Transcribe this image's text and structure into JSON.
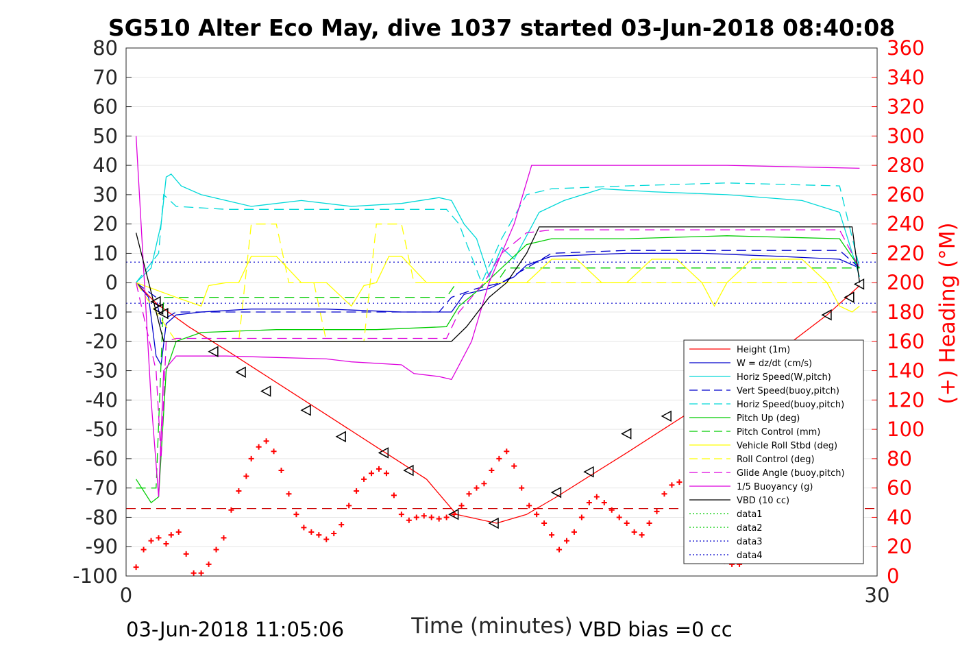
{
  "chart_data": {
    "type": "line",
    "title": "SG510 Alter Eco May, dive 1037 started 03-Jun-2018 08:40:08",
    "xlabel": "Time (minutes)",
    "ylabel_right": "(+) Heading (°M)",
    "footer_left": "03-Jun-2018 11:05:06",
    "footer_right": "VBD bias =0 cc",
    "xlim": [
      0,
      30
    ],
    "ylim": [
      -100,
      80
    ],
    "ylim_right": [
      0,
      360
    ],
    "x_ticks": [
      "0",
      "30"
    ],
    "y_ticks": [
      "80",
      "70",
      "60",
      "50",
      "40",
      "30",
      "20",
      "10",
      "0",
      "-10",
      "-20",
      "-30",
      "-40",
      "-50",
      "-60",
      "-70",
      "-80",
      "-90",
      "-100"
    ],
    "y_ticks_right": [
      "360",
      "340",
      "320",
      "300",
      "280",
      "260",
      "240",
      "220",
      "200",
      "180",
      "160",
      "140",
      "120",
      "100",
      "80",
      "60",
      "40",
      "20",
      "0"
    ],
    "grid": true,
    "legend_position": "bottom-right",
    "series": [
      {
        "name": "Height (1m)",
        "color": "#ff0000",
        "style": "solid",
        "x": [
          0.4,
          1.2,
          2.5,
          4.0,
          6.0,
          8.0,
          10.0,
          12.0,
          13.2,
          14.8,
          16.0,
          17.2,
          18.5,
          20.0,
          22.0,
          24.0,
          26.0,
          28.0,
          29.3
        ],
        "y": [
          0,
          -7,
          -15,
          -23,
          -34,
          -45,
          -56,
          -67,
          -79,
          -82,
          -79,
          -73,
          -66,
          -58,
          -47,
          -36,
          -24,
          -11,
          -1
        ]
      },
      {
        "name": "W = dz/dt (cm/s)",
        "color": "#0000cc",
        "style": "solid",
        "x": [
          0.4,
          0.9,
          1.2,
          1.4,
          1.6,
          2.0,
          3.0,
          5.0,
          8.0,
          11.0,
          13.0,
          13.5,
          14.5,
          15.0,
          15.5,
          16.0,
          17.0,
          20.0,
          23.0,
          26.0,
          28.5,
          29.3
        ],
        "y": [
          0,
          -5,
          -25,
          -28,
          -14,
          -11,
          -10,
          -9,
          -9,
          -10,
          -10,
          -4,
          -2,
          0,
          2,
          6,
          9,
          10,
          10,
          9,
          8,
          5
        ]
      },
      {
        "name": "Horiz Speed(W,pitch)",
        "color": "#00d8d8",
        "style": "solid",
        "x": [
          0.4,
          1.0,
          1.4,
          1.6,
          1.8,
          2.2,
          3.0,
          5.0,
          7.0,
          9.0,
          11.0,
          12.5,
          13.0,
          13.5,
          14.0,
          14.5,
          15.0,
          15.5,
          16.5,
          17.5,
          19.0,
          21.0,
          24.0,
          27.0,
          28.5,
          29.3
        ],
        "y": [
          0,
          5,
          20,
          36,
          37,
          33,
          30,
          26,
          28,
          26,
          27,
          29,
          28,
          20,
          15,
          2,
          12,
          8,
          24,
          28,
          32,
          31,
          30,
          28,
          24,
          2
        ]
      },
      {
        "name": "Vert Speed(buoy,pitch)",
        "color": "#0000cc",
        "style": "dashed",
        "x": [
          0.4,
          1.2,
          1.4,
          1.6,
          2.0,
          4.0,
          8.0,
          12.5,
          13.0,
          14.0,
          15.0,
          16.0,
          17.0,
          20.0,
          24.0,
          28.5,
          29.3
        ],
        "y": [
          0,
          -5,
          -14,
          -12,
          -10,
          -10,
          -10,
          -10,
          -5,
          -2,
          0,
          5,
          10,
          11,
          11,
          11,
          5
        ]
      },
      {
        "name": "Horiz Speed(buoy,pitch)",
        "color": "#00d8d8",
        "style": "dashed",
        "x": [
          0.4,
          1.3,
          1.5,
          2.0,
          4.0,
          8.0,
          12.8,
          13.3,
          14.2,
          15.0,
          16.0,
          17.0,
          20.0,
          24.0,
          28.5,
          29.3
        ],
        "y": [
          0,
          10,
          30,
          26,
          25,
          25,
          25,
          20,
          0,
          15,
          30,
          32,
          33,
          34,
          33,
          5
        ]
      },
      {
        "name": "Pitch Up (deg)",
        "color": "#00cc00",
        "style": "solid",
        "x": [
          0.4,
          1.0,
          1.3,
          1.6,
          2.0,
          3.0,
          6.0,
          10.0,
          12.8,
          13.3,
          14.0,
          15.0,
          16.0,
          17.0,
          20.0,
          24.0,
          28.5,
          29.3
        ],
        "y": [
          -67,
          -75,
          -73,
          -30,
          -20,
          -17,
          -16,
          -16,
          -15,
          -8,
          -3,
          5,
          13,
          15,
          15,
          16,
          15,
          5
        ]
      },
      {
        "name": "Pitch Control (mm)",
        "color": "#00cc00",
        "style": "dashed",
        "x": [
          0.4,
          1.2,
          1.5,
          2.0,
          8.0,
          12.8,
          13.2,
          14.8,
          15.2,
          20.0,
          28.5,
          29.3
        ],
        "y": [
          -70,
          -70,
          -5,
          -5,
          -5,
          -5,
          0,
          0,
          5,
          5,
          5,
          5
        ]
      },
      {
        "name": "Vehicle Roll Stbd (deg)",
        "color": "#ffff00",
        "style": "solid",
        "x": [
          0.4,
          2.0,
          3.0,
          3.3,
          4.0,
          4.5,
          5.0,
          6.0,
          7.0,
          8.0,
          9.0,
          9.5,
          10.0,
          10.5,
          11.0,
          12.0,
          13.0,
          14.0,
          15.5,
          16.0,
          17.0,
          18.0,
          19.0,
          20.0,
          21.0,
          22.0,
          23.0,
          23.5,
          24.0,
          25.0,
          26.0,
          27.0,
          28.0,
          28.5,
          29.0,
          29.3
        ],
        "y": [
          0,
          -5,
          -8,
          -1,
          0,
          0,
          9,
          9,
          0,
          0,
          -8,
          -1,
          0,
          9,
          9,
          0,
          0,
          0,
          0,
          0,
          8,
          8,
          0,
          0,
          8,
          8,
          0,
          -8,
          0,
          8,
          8,
          8,
          0,
          -8,
          -10,
          -8
        ]
      },
      {
        "name": "Roll Control (deg)",
        "color": "#ffff00",
        "style": "dashed",
        "x": [
          0.4,
          2.0,
          3.0,
          4.5,
          5.0,
          6.0,
          6.5,
          7.5,
          8.0,
          9.5,
          10.0,
          11.0,
          11.5,
          13.0,
          28.5
        ],
        "y": [
          0,
          -20,
          -20,
          -20,
          20,
          20,
          0,
          0,
          -20,
          -20,
          20,
          20,
          0,
          0,
          0
        ]
      },
      {
        "name": "Glide Angle (buoy,pitch)",
        "color": "#dd00dd",
        "style": "dashed",
        "x": [
          0.4,
          1.2,
          1.4,
          1.6,
          2.0,
          4.0,
          8.0,
          12.8,
          13.3,
          14.3,
          15.0,
          16.0,
          17.0,
          20.0,
          24.0,
          28.5,
          29.3
        ],
        "y": [
          0,
          -30,
          -60,
          -20,
          -19,
          -19,
          -19,
          -19,
          -10,
          0,
          10,
          17,
          18,
          18,
          18,
          18,
          5
        ]
      },
      {
        "name": "1/5 Buoyancy (g)",
        "color": "#dd00dd",
        "style": "solid",
        "x": [
          0.4,
          1.0,
          1.3,
          1.5,
          2.0,
          4.0,
          8.0,
          9.0,
          11.0,
          11.5,
          12.5,
          13.0,
          13.8,
          14.5,
          15.5,
          16.2,
          20.0,
          24.0,
          29.3
        ],
        "y": [
          50,
          -40,
          -73,
          -30,
          -25,
          -25,
          -26,
          -27,
          -28,
          -31,
          -32,
          -33,
          -20,
          0,
          20,
          40,
          40,
          40,
          39
        ]
      },
      {
        "name": "VBD (10 cc)",
        "color": "#000000",
        "style": "solid",
        "x": [
          0.4,
          1.5,
          13.0,
          13.6,
          14.5,
          15.2,
          16.0,
          16.5,
          29.0,
          29.3
        ],
        "y": [
          17,
          -20,
          -20,
          -15,
          -5,
          0,
          10,
          19,
          19,
          0
        ]
      }
    ],
    "heading_series": {
      "name": "Heading",
      "color": "#ff0000",
      "marker": "+",
      "axis": "right",
      "x": [
        0.4,
        0.7,
        1.0,
        1.3,
        1.6,
        1.8,
        2.1,
        2.4,
        2.7,
        3.0,
        3.3,
        3.6,
        3.9,
        4.2,
        4.5,
        4.8,
        5.0,
        5.3,
        5.6,
        5.9,
        6.2,
        6.5,
        6.8,
        7.1,
        7.4,
        7.7,
        8.0,
        8.3,
        8.6,
        8.9,
        9.2,
        9.5,
        9.8,
        10.1,
        10.4,
        10.7,
        11.0,
        11.3,
        11.6,
        11.9,
        12.2,
        12.5,
        12.8,
        13.1,
        13.4,
        13.7,
        14.0,
        14.3,
        14.6,
        14.9,
        15.2,
        15.5,
        15.8,
        16.1,
        16.4,
        16.7,
        17.0,
        17.3,
        17.6,
        17.9,
        18.2,
        18.5,
        18.8,
        19.1,
        19.4,
        19.7,
        20.0,
        20.3,
        20.6,
        20.9,
        21.2,
        21.5,
        21.8,
        22.1,
        22.4,
        22.7,
        23.0,
        23.3,
        23.6,
        23.9,
        24.2,
        24.5
      ],
      "y": [
        6,
        18,
        24,
        26,
        22,
        28,
        30,
        15,
        2,
        2,
        8,
        18,
        26,
        45,
        58,
        68,
        80,
        88,
        92,
        85,
        72,
        56,
        42,
        33,
        30,
        28,
        25,
        29,
        35,
        48,
        58,
        66,
        70,
        73,
        70,
        55,
        42,
        38,
        40,
        41,
        40,
        39,
        40,
        42,
        48,
        56,
        60,
        63,
        72,
        80,
        85,
        75,
        60,
        48,
        42,
        36,
        28,
        18,
        24,
        30,
        40,
        50,
        54,
        50,
        45,
        40,
        36,
        30,
        28,
        36,
        44,
        56,
        62,
        64,
        66,
        65,
        60,
        50,
        30,
        10,
        8,
        8
      ]
    },
    "depth_markers": {
      "name": "Depth markers",
      "color": "#000000",
      "marker": "triangle-left",
      "x": [
        1.2,
        1.3,
        1.5,
        3.5,
        4.6,
        5.6,
        7.2,
        8.6,
        10.3,
        11.3,
        13.1,
        14.7,
        17.2,
        18.5,
        20.0,
        21.6,
        22.6,
        23.6,
        28.0,
        28.9,
        29.3
      ],
      "y": [
        -6.5,
        -9,
        -10.5,
        -23.5,
        -30.5,
        -37,
        -43.5,
        -52.5,
        -58,
        -64,
        -79,
        -82,
        -71.5,
        -64.5,
        -51.5,
        -45.5,
        -39,
        -32.5,
        -11,
        -5,
        -0.5
      ]
    },
    "reference_lines": [
      {
        "y": 7,
        "color": "#0000cc",
        "style": "dotted"
      },
      {
        "y": -7,
        "color": "#0000cc",
        "style": "dotted"
      },
      {
        "y": -77,
        "color": "#cc0000",
        "style": "dashed"
      }
    ],
    "legend_entries": [
      {
        "label": "Height (1m)",
        "color": "#ff0000",
        "style": "solid"
      },
      {
        "label": "W = dz/dt (cm/s)",
        "color": "#0000cc",
        "style": "solid"
      },
      {
        "label": "Horiz Speed(W,pitch)",
        "color": "#00d8d8",
        "style": "solid"
      },
      {
        "label": "Vert Speed(buoy,pitch)",
        "color": "#0000cc",
        "style": "dashed"
      },
      {
        "label": "Horiz Speed(buoy,pitch)",
        "color": "#00d8d8",
        "style": "dashed"
      },
      {
        "label": "Pitch Up (deg)",
        "color": "#00cc00",
        "style": "solid"
      },
      {
        "label": "Pitch Control (mm)",
        "color": "#00cc00",
        "style": "dashed"
      },
      {
        "label": "Vehicle Roll Stbd (deg)",
        "color": "#ffff00",
        "style": "solid"
      },
      {
        "label": "Roll Control (deg)",
        "color": "#ffff00",
        "style": "dashed"
      },
      {
        "label": "Glide Angle (buoy,pitch)",
        "color": "#dd00dd",
        "style": "dashed"
      },
      {
        "label": "1/5 Buoyancy (g)",
        "color": "#dd00dd",
        "style": "solid"
      },
      {
        "label": "VBD (10 cc)",
        "color": "#000000",
        "style": "solid"
      },
      {
        "label": "data1",
        "color": "#00cc00",
        "style": "dotted"
      },
      {
        "label": "data2",
        "color": "#00cc00",
        "style": "dotted"
      },
      {
        "label": "data3",
        "color": "#0000cc",
        "style": "dotted"
      },
      {
        "label": "data4",
        "color": "#0000cc",
        "style": "dotted"
      }
    ]
  }
}
